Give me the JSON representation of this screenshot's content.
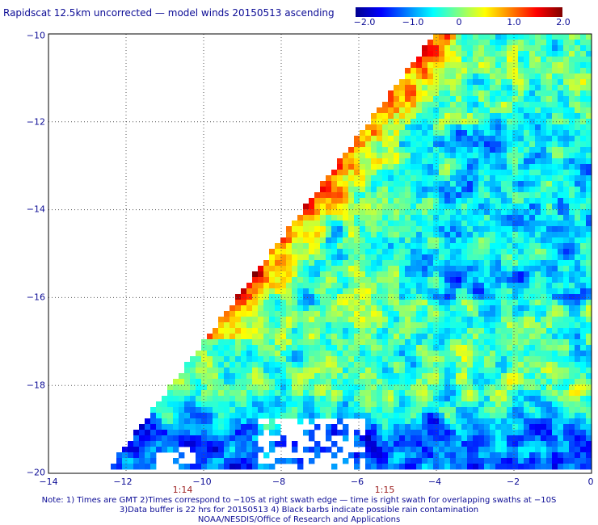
{
  "title": "Rapidscat 12.5km uncorrected — model winds 20150513 ascending",
  "colorbar": {
    "ticks": [
      "−2.0",
      "−1.0",
      "0",
      "1.0",
      "2.0"
    ],
    "range": [
      -2.0,
      2.0
    ],
    "colors": [
      "#00008f",
      "#0000ff",
      "#0080ff",
      "#00ffff",
      "#80ff80",
      "#ffff00",
      "#ff8000",
      "#ff0000",
      "#800000"
    ]
  },
  "axes": {
    "y_labels": [
      "−10",
      "−12",
      "−14",
      "−16",
      "−18",
      "−20"
    ],
    "x_labels": [
      "−14",
      "−12",
      "−10",
      "−8",
      "−6",
      "−4",
      "−2",
      "0"
    ],
    "lat_range": [
      -20,
      -10
    ],
    "lon_range": [
      -14,
      0
    ],
    "grid": "dotted"
  },
  "swath_times": [
    "1:14",
    "1:15"
  ],
  "footer": {
    "line1": "Note: 1) Times are GMT 2)Times correspond to −10S at right swath edge — time is right swath for overlapping swaths at −10S",
    "line2": "3)Data buffer is 22 hrs for 20150513 4) Black barbs indicate possible rain contamination",
    "line3": "NOAA/NESDIS/Office of Research and Applications"
  },
  "map": {
    "description_colors": {
      "no_data": "#ffffff"
    }
  }
}
